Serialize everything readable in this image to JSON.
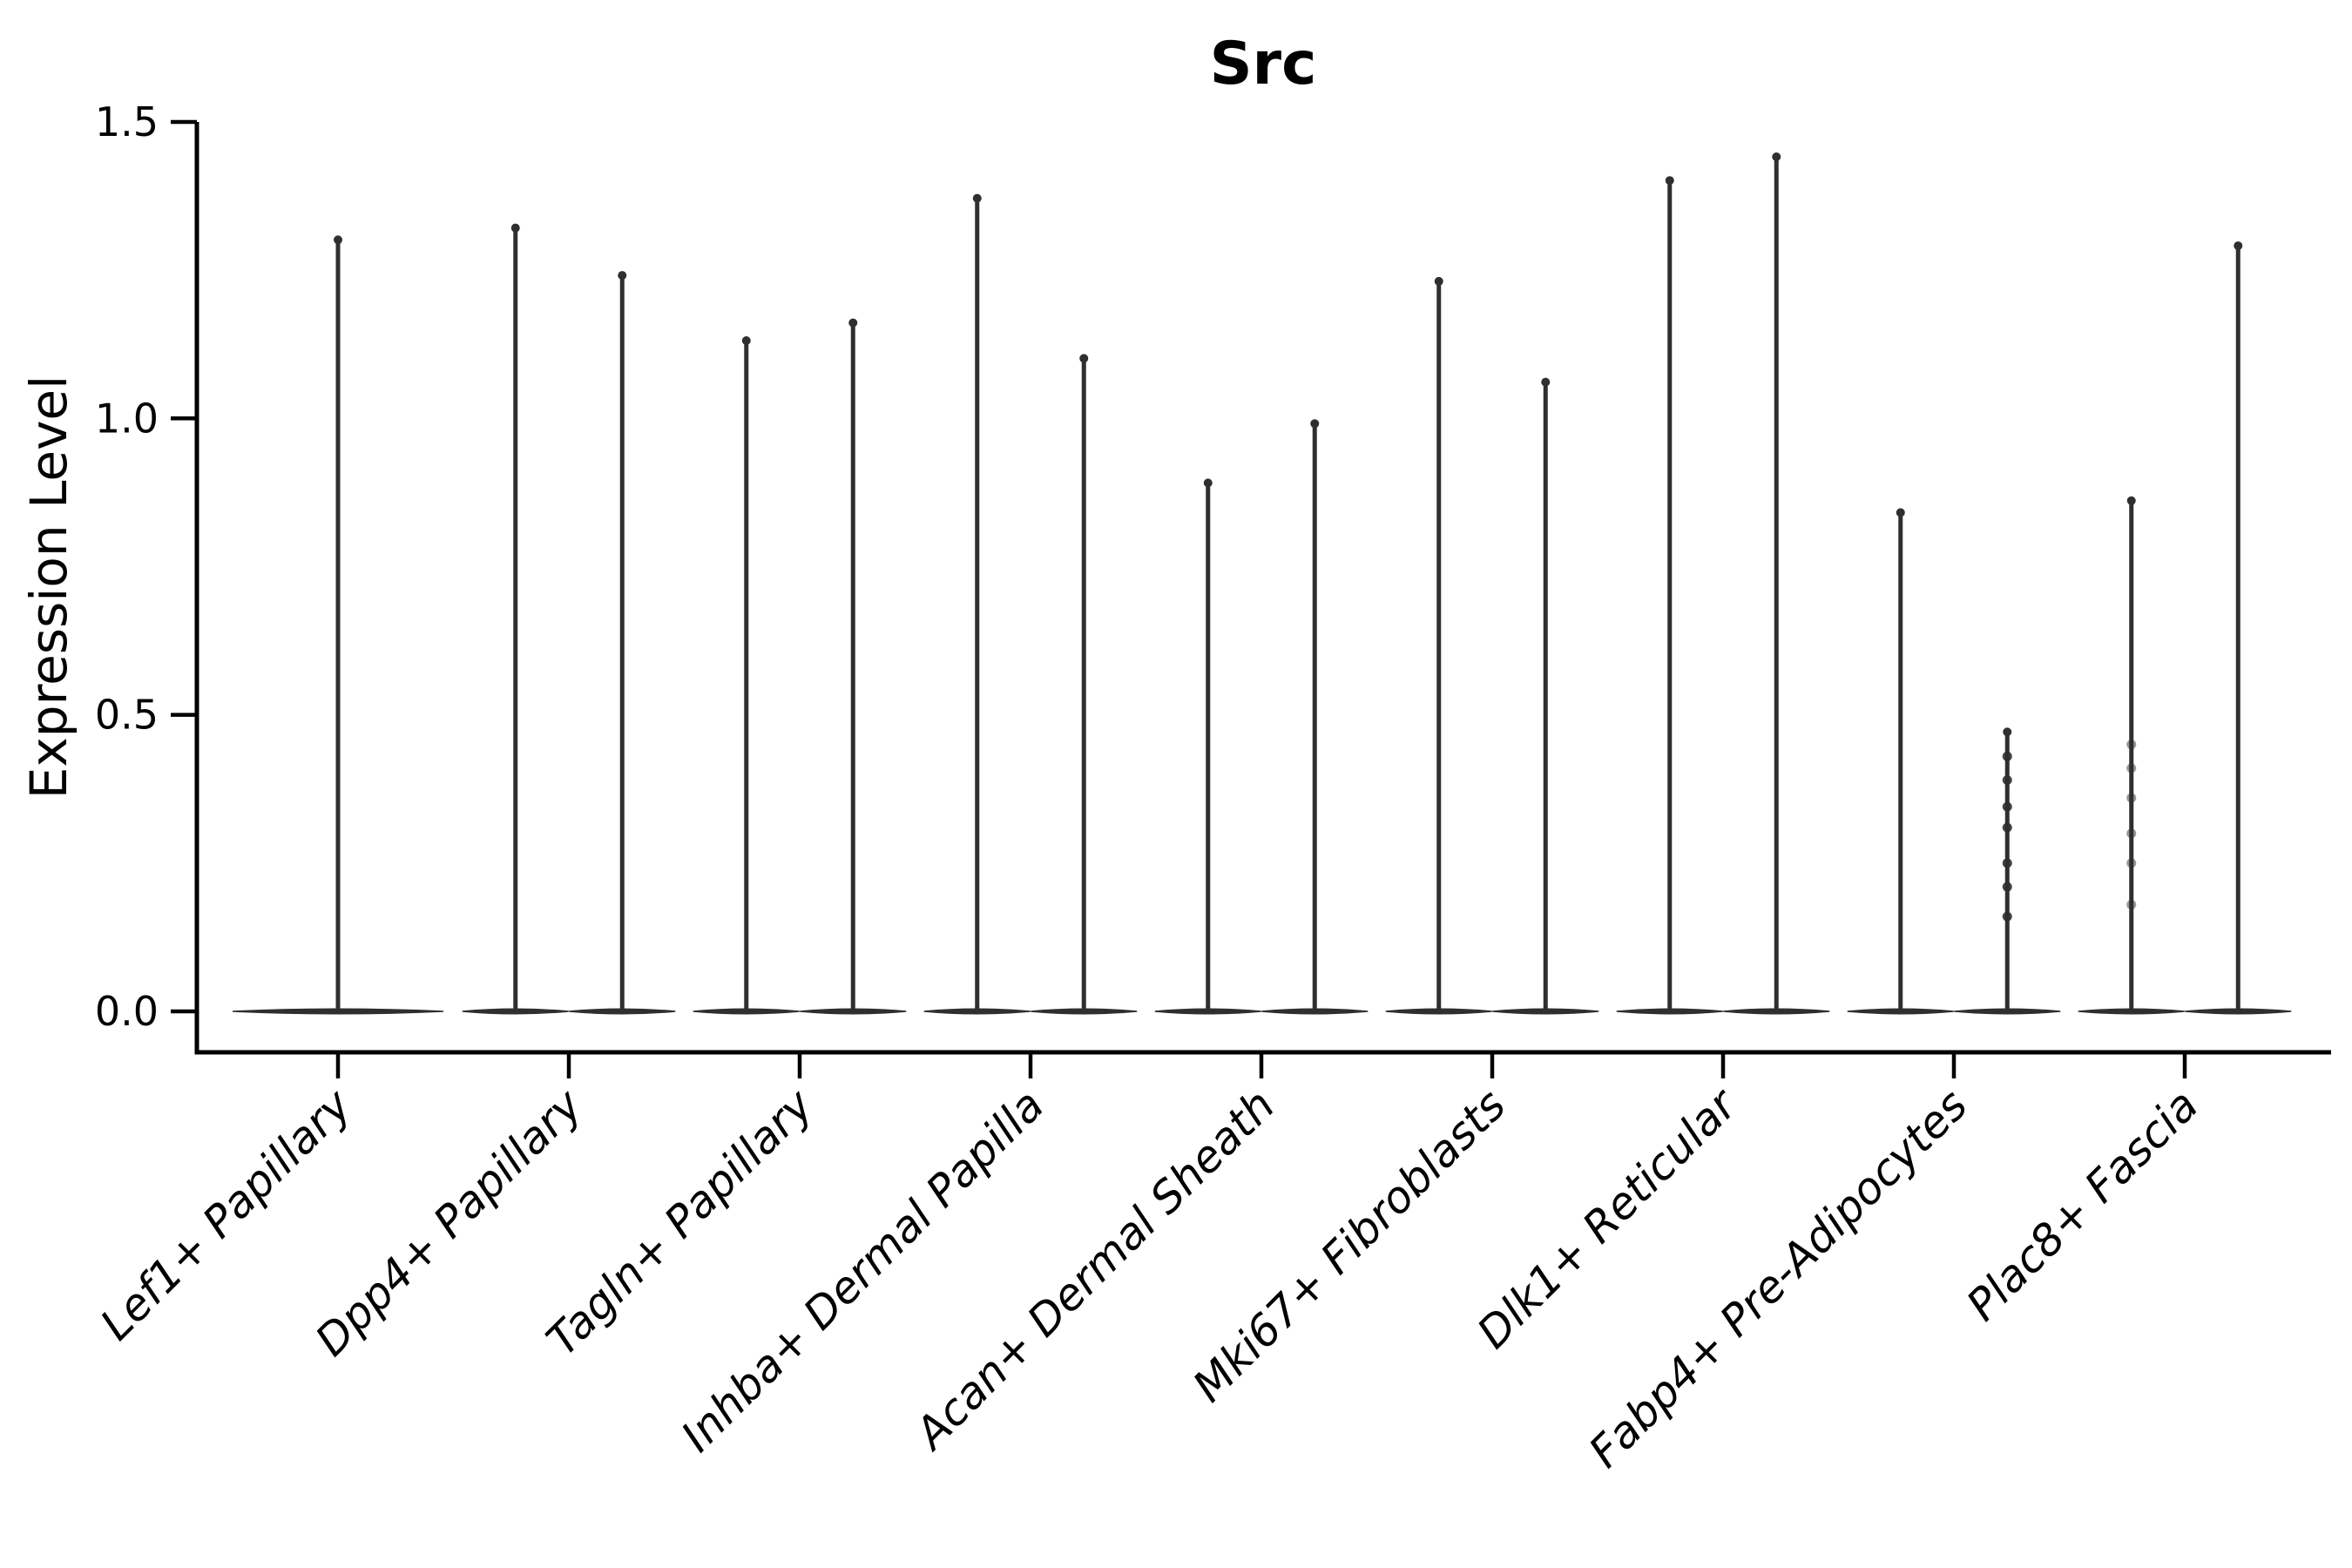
{
  "chart_data": {
    "type": "violin",
    "title": "Src",
    "ylabel": "Expression Level",
    "xlabel": "",
    "ylim": [
      0,
      1.5
    ],
    "ytick_labels": [
      "0.0",
      "0.5",
      "1.0",
      "1.5"
    ],
    "ytick_values": [
      0.0,
      0.5,
      1.0,
      1.5
    ],
    "grid": false,
    "legend": false,
    "violin_color": "#2f2f2f",
    "axis_color": "#000000",
    "background": "#ffffff",
    "categories": [
      {
        "label": "Lef1+ Papillary",
        "violins": [
          {
            "offset": 0,
            "width": "full",
            "max": 1.31,
            "dots": [],
            "dots_opacity": 0
          }
        ]
      },
      {
        "label": "Dpp4+ Papillary",
        "violins": [
          {
            "offset": -1,
            "width": "half",
            "max": 1.33,
            "dots": [],
            "dots_opacity": 0
          },
          {
            "offset": 1,
            "width": "half",
            "max": 1.25,
            "dots": [],
            "dots_opacity": 0
          }
        ]
      },
      {
        "label": "Tagln+ Papillary",
        "violins": [
          {
            "offset": -1,
            "width": "half",
            "max": 1.14,
            "dots": [],
            "dots_opacity": 0
          },
          {
            "offset": 1,
            "width": "half",
            "max": 1.17,
            "dots": [],
            "dots_opacity": 0
          }
        ]
      },
      {
        "label": "Inhba+ Dermal Papilla",
        "violins": [
          {
            "offset": -1,
            "width": "half",
            "max": 1.38,
            "dots": [],
            "dots_opacity": 0
          },
          {
            "offset": 1,
            "width": "half",
            "max": 1.11,
            "dots": [],
            "dots_opacity": 0
          }
        ]
      },
      {
        "label": "Acan+ Dermal Sheath",
        "violins": [
          {
            "offset": -1,
            "width": "half",
            "max": 0.9,
            "dots": [],
            "dots_opacity": 0
          },
          {
            "offset": 1,
            "width": "half",
            "max": 1.0,
            "dots": [],
            "dots_opacity": 0
          }
        ]
      },
      {
        "label": "Mki67+ Fibroblasts",
        "violins": [
          {
            "offset": -1,
            "width": "half",
            "max": 1.24,
            "dots": [],
            "dots_opacity": 0
          },
          {
            "offset": 1,
            "width": "half",
            "max": 1.07,
            "dots": [],
            "dots_opacity": 0
          }
        ]
      },
      {
        "label": "Dlk1+ Reticular",
        "violins": [
          {
            "offset": -1,
            "width": "half",
            "max": 1.41,
            "dots": [],
            "dots_opacity": 0
          },
          {
            "offset": 1,
            "width": "half",
            "max": 1.45,
            "dots": [],
            "dots_opacity": 0
          }
        ]
      },
      {
        "label": "Fabp4+ Pre-Adipocytes",
        "violins": [
          {
            "offset": -1,
            "width": "half",
            "max": 0.85,
            "dots": [],
            "dots_opacity": 0
          },
          {
            "offset": 1,
            "width": "half",
            "max": 0.48,
            "dots": [
              0.43,
              0.39,
              0.345,
              0.31,
              0.25,
              0.21,
              0.16
            ],
            "dots_opacity": 0.9
          }
        ]
      },
      {
        "label": "Plac8+ Fascia",
        "violins": [
          {
            "offset": -1,
            "width": "half",
            "max": 0.87,
            "dots": [
              0.45,
              0.41,
              0.36,
              0.3,
              0.25,
              0.18
            ],
            "dots_opacity": 0.5
          },
          {
            "offset": 1,
            "width": "half",
            "max": 1.3,
            "dots": [],
            "dots_opacity": 0
          }
        ]
      }
    ]
  }
}
